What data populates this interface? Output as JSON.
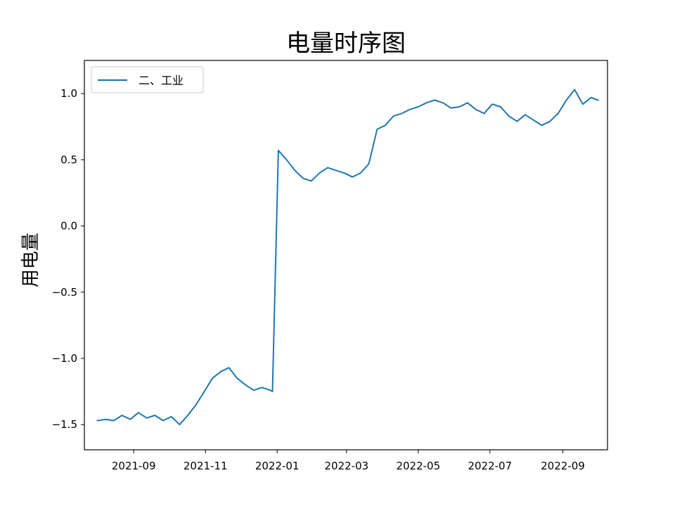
{
  "chart_data": {
    "type": "line",
    "title": "电量时序图",
    "xlabel": "",
    "ylabel": "用电量",
    "x_ticks": [
      "2021-09",
      "2021-11",
      "2022-01",
      "2022-03",
      "2022-05",
      "2022-07",
      "2022-09"
    ],
    "y_ticks": [
      "−1.5",
      "−1.0",
      "−0.5",
      "0.0",
      "0.5",
      "1.0"
    ],
    "ylim": [
      -1.69,
      1.25
    ],
    "xlim": [
      "2021-07-21",
      "2022-10-09"
    ],
    "legend": "upper left",
    "grid": false,
    "series": [
      {
        "name": "二、工业",
        "color": "#1f77b4",
        "x": [
          "2021-08-01",
          "2021-08-08",
          "2021-08-15",
          "2021-08-22",
          "2021-08-29",
          "2021-09-05",
          "2021-09-12",
          "2021-09-19",
          "2021-09-26",
          "2021-10-03",
          "2021-10-10",
          "2021-10-17",
          "2021-10-24",
          "2021-10-31",
          "2021-11-07",
          "2021-11-14",
          "2021-11-21",
          "2021-11-28",
          "2021-12-05",
          "2021-12-12",
          "2021-12-19",
          "2021-12-26",
          "2021-12-28",
          "2022-01-02",
          "2022-01-09",
          "2022-01-16",
          "2022-01-23",
          "2022-01-30",
          "2022-02-06",
          "2022-02-13",
          "2022-02-20",
          "2022-02-27",
          "2022-03-06",
          "2022-03-13",
          "2022-03-20",
          "2022-03-27",
          "2022-04-03",
          "2022-04-10",
          "2022-04-17",
          "2022-04-24",
          "2022-05-01",
          "2022-05-08",
          "2022-05-15",
          "2022-05-22",
          "2022-05-29",
          "2022-06-05",
          "2022-06-12",
          "2022-06-19",
          "2022-06-26",
          "2022-07-03",
          "2022-07-10",
          "2022-07-17",
          "2022-07-24",
          "2022-07-31",
          "2022-08-07",
          "2022-08-14",
          "2022-08-21",
          "2022-08-28",
          "2022-09-04",
          "2022-09-11",
          "2022-09-18",
          "2022-09-25",
          "2022-10-01"
        ],
        "values": [
          -1.47,
          -1.46,
          -1.47,
          -1.43,
          -1.46,
          -1.41,
          -1.45,
          -1.43,
          -1.47,
          -1.44,
          -1.5,
          -1.43,
          -1.35,
          -1.25,
          -1.15,
          -1.1,
          -1.07,
          -1.15,
          -1.2,
          -1.24,
          -1.22,
          -1.24,
          -1.25,
          0.57,
          0.5,
          0.42,
          0.36,
          0.34,
          0.4,
          0.44,
          0.42,
          0.4,
          0.37,
          0.4,
          0.47,
          0.73,
          0.76,
          0.83,
          0.85,
          0.88,
          0.9,
          0.93,
          0.95,
          0.93,
          0.89,
          0.9,
          0.93,
          0.88,
          0.85,
          0.92,
          0.9,
          0.83,
          0.79,
          0.84,
          0.8,
          0.76,
          0.79,
          0.85,
          0.95,
          1.03,
          0.92,
          0.97,
          0.95
        ]
      }
    ]
  }
}
